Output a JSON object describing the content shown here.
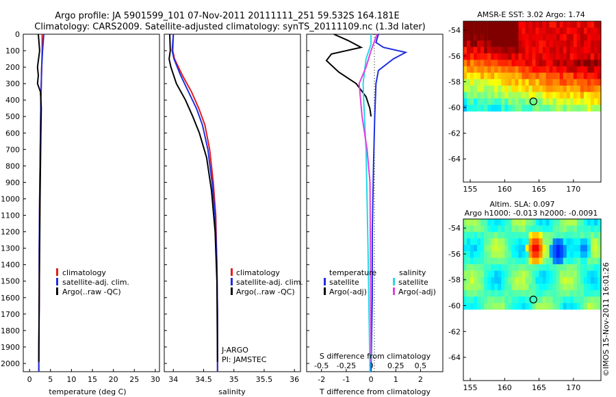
{
  "titles": {
    "line1": "Argo profile: JA 5901599_101 07-Nov-2011 20111111_251 59.532S 164.181E",
    "line2": "Climatology: CARS2009. Satellite-adjusted climatology: synTS_20111109.nc (1.3d later)"
  },
  "colors": {
    "climatology": "#e41a1c",
    "satellite": "#1f2ee0",
    "argo": "#000000",
    "sat_diff_salinity": "#22d8e8",
    "argo_diff_salinity": "#e040e0"
  },
  "chart_data": [
    {
      "type": "line",
      "id": "temperature",
      "xlabel": "temperature (deg C)",
      "ylabel": "",
      "xlim": [
        -1.5,
        31
      ],
      "ylim": [
        2050,
        0
      ],
      "xticks": [
        "0",
        "5",
        "10",
        "15",
        "20",
        "25",
        "30"
      ],
      "yticks": [
        "0",
        "100",
        "200",
        "300",
        "400",
        "500",
        "600",
        "700",
        "800",
        "900",
        "1000",
        "1100",
        "1200",
        "1300",
        "1400",
        "1500",
        "1600",
        "1700",
        "1800",
        "1900",
        "2000"
      ],
      "legend": [
        "climatology",
        "satellite-adj. clim.",
        "Argo(..raw -QC)"
      ],
      "series": [
        {
          "name": "climatology",
          "x": [
            3.0,
            3.0,
            2.9,
            2.8,
            2.7,
            2.6,
            2.5,
            2.4,
            2.3,
            2.3,
            2.2,
            2.2
          ],
          "y": [
            0,
            100,
            200,
            300,
            400,
            600,
            800,
            1000,
            1300,
            1600,
            1900,
            2050
          ]
        },
        {
          "name": "satellite-adj. clim.",
          "x": [
            3.4,
            3.1,
            2.9,
            2.8,
            2.7,
            2.6,
            2.5,
            2.4,
            2.3,
            2.3,
            2.2,
            2.2
          ],
          "y": [
            0,
            100,
            200,
            300,
            400,
            600,
            800,
            1000,
            1300,
            1600,
            1900,
            2050
          ]
        },
        {
          "name": "Argo(..raw -QC)",
          "x": [
            2.1,
            2.4,
            1.9,
            2.1,
            1.9,
            2.6,
            2.8,
            2.7,
            2.6,
            2.5,
            2.4,
            2.3,
            2.2
          ],
          "y": [
            0,
            100,
            200,
            250,
            300,
            350,
            450,
            600,
            800,
            1000,
            1300,
            1600,
            1990
          ]
        }
      ]
    },
    {
      "type": "line",
      "id": "salinity",
      "xlabel": "salinity",
      "ylabel": "",
      "xlim": [
        33.85,
        36.1
      ],
      "ylim": [
        2050,
        0
      ],
      "xticks": [
        "34",
        "34.5",
        "35",
        "35.5",
        "36"
      ],
      "legend": [
        "climatology",
        "satellite-adj. clim.",
        "Argo(..raw -QC)"
      ],
      "annotations": [
        "J-ARGO",
        "PI: JAMSTEC"
      ],
      "series": [
        {
          "name": "climatology",
          "x": [
            34.0,
            33.99,
            34.02,
            34.15,
            34.3,
            34.42,
            34.52,
            34.6,
            34.66,
            34.7,
            34.72,
            34.73,
            34.73
          ],
          "y": [
            0,
            100,
            150,
            250,
            350,
            450,
            550,
            700,
            900,
            1100,
            1400,
            1700,
            2050
          ]
        },
        {
          "name": "satellite-adj. clim.",
          "x": [
            34.0,
            33.98,
            34.01,
            34.12,
            34.25,
            34.38,
            34.48,
            34.57,
            34.64,
            34.69,
            34.72,
            34.73,
            34.73
          ],
          "y": [
            0,
            100,
            150,
            250,
            350,
            450,
            550,
            700,
            900,
            1100,
            1400,
            1700,
            2050
          ]
        },
        {
          "name": "Argo(..raw -QC)",
          "x": [
            33.94,
            33.95,
            33.93,
            33.96,
            34.05,
            34.2,
            34.32,
            34.43,
            34.55,
            34.63,
            34.69,
            34.72,
            34.73
          ],
          "y": [
            0,
            100,
            150,
            200,
            300,
            400,
            500,
            600,
            750,
            950,
            1200,
            1500,
            1990
          ]
        }
      ]
    },
    {
      "type": "line",
      "id": "difference",
      "xlabel": "T difference from climatology",
      "x2label": "S difference from climatology",
      "xlim": [
        -2.6,
        2.9
      ],
      "x2lim": [
        -0.65,
        0.725
      ],
      "ylim": [
        2050,
        0
      ],
      "xticks": [
        "-2",
        "-1",
        "0",
        "1",
        "2"
      ],
      "x2ticks": [
        "-0.5",
        "-0.25",
        "0",
        "0.25",
        "0.5"
      ],
      "legend": {
        "temperature_header": "temperature",
        "salinity_header": "salinity",
        "items": [
          "satellite",
          "Argo(-adj)",
          "satellite",
          "Argo(-adj)"
        ]
      },
      "series": [
        {
          "name": "satellite",
          "x": [
            0.3,
            0.2,
            0.5,
            1.4,
            0.9,
            0.3,
            0.2,
            0.15,
            0.1,
            0.05,
            0.05,
            0.0
          ],
          "y": [
            0,
            50,
            80,
            110,
            150,
            220,
            300,
            500,
            800,
            1200,
            1600,
            2050
          ]
        },
        {
          "name": "Argo(-adj)",
          "x": [
            -1.5,
            -0.9,
            -0.4,
            -1.6,
            -1.8,
            -1.3,
            -0.6,
            -0.2,
            -0.05,
            0.0
          ],
          "y": [
            0,
            40,
            80,
            120,
            160,
            230,
            300,
            380,
            450,
            500
          ]
        },
        {
          "name": "satellite",
          "x": [
            0.0,
            0.0,
            -0.05,
            -0.08,
            -0.07,
            -0.05,
            -0.04,
            -0.03,
            -0.02,
            -0.01
          ],
          "y": [
            0,
            60,
            150,
            300,
            450,
            700,
            1000,
            1300,
            1700,
            2050
          ]
        },
        {
          "name": "Argo(-adj)",
          "x": [
            0.06,
            0.0,
            -0.05,
            -0.12,
            -0.09,
            -0.04,
            -0.01,
            0.0
          ],
          "y": [
            0,
            100,
            200,
            300,
            500,
            700,
            900,
            1990
          ]
        }
      ]
    },
    {
      "type": "heatmap",
      "id": "amsre-sst",
      "title": "AMSR-E SST: 3.02  Argo: 1.74",
      "xlim": [
        154,
        174
      ],
      "ylim": [
        -65.8,
        -53.3
      ],
      "xticks": [
        "155",
        "160",
        "165",
        "170"
      ],
      "yticks": [
        "-54",
        "-56",
        "-58",
        "-60",
        "-62",
        "-64"
      ],
      "marker": {
        "lon": 164.18,
        "lat": -59.53
      }
    },
    {
      "type": "heatmap",
      "id": "altimetry-sla",
      "title_line1": "Altim. SLA: 0.097",
      "title_line2": "Argo h1000: -0.013  h2000: -0.0091",
      "xlim": [
        154,
        174
      ],
      "ylim": [
        -65.8,
        -53.3
      ],
      "xticks": [
        "155",
        "160",
        "165",
        "170"
      ],
      "yticks": [
        "-54",
        "-56",
        "-58",
        "-60",
        "-62",
        "-64"
      ],
      "marker": {
        "lon": 164.18,
        "lat": -59.53
      }
    }
  ],
  "footer": {
    "stamp": "©IMOS 15-Nov-2011 16:01:26"
  }
}
